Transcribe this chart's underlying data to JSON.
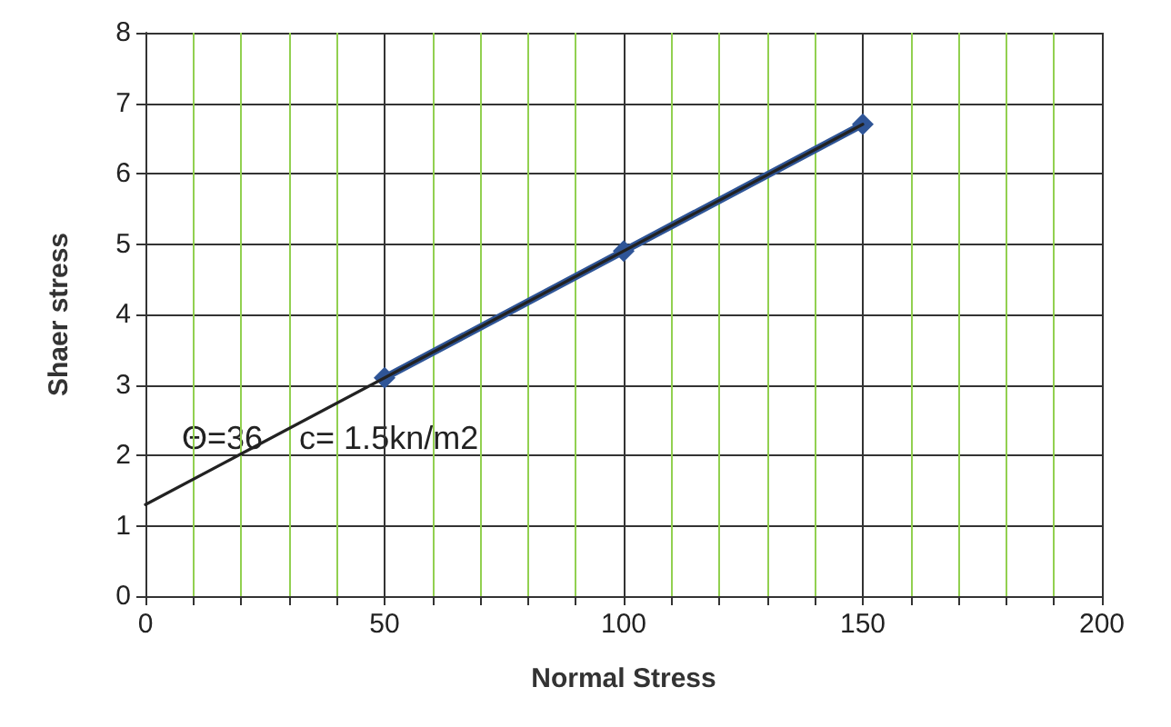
{
  "chart_data": {
    "type": "line",
    "xlabel": "Normal Stress",
    "ylabel": "Shaer stress",
    "xlim": [
      0,
      200
    ],
    "xticks": [
      0,
      {
        "value": 10,
        "label": null
      },
      {
        "value": 20,
        "label": null
      },
      {
        "value": 30,
        "label": null
      },
      {
        "value": 40,
        "label": null
      },
      50,
      {
        "value": 60,
        "label": null
      },
      {
        "value": 70,
        "label": null
      },
      {
        "value": 80,
        "label": null
      },
      {
        "value": 90,
        "label": null
      },
      100,
      {
        "value": 110,
        "label": null
      },
      {
        "value": 120,
        "label": null
      },
      {
        "value": 130,
        "label": null
      },
      {
        "value": 140,
        "label": null
      },
      150,
      {
        "value": 160,
        "label": null
      },
      {
        "value": 170,
        "label": null
      },
      {
        "value": 180,
        "label": null
      },
      {
        "value": 190,
        "label": null
      },
      200
    ],
    "ylim": [
      0,
      8
    ],
    "yticks": [
      0,
      1,
      2,
      3,
      4,
      5,
      6,
      7,
      8
    ],
    "grid": true,
    "annotations": [
      "Θ=36    c= 1.5kn/m2"
    ],
    "series": [
      {
        "color": "#2f5597",
        "x": [
          50,
          100,
          150
        ],
        "values": [
          3.1,
          4.9,
          6.7
        ],
        "marker": "diamond",
        "line_style": "solid"
      },
      {
        "color": "#222222",
        "x": [
          0,
          150
        ],
        "values": [
          1.3,
          6.7
        ],
        "marker": "none",
        "line_style": "solid"
      }
    ]
  }
}
